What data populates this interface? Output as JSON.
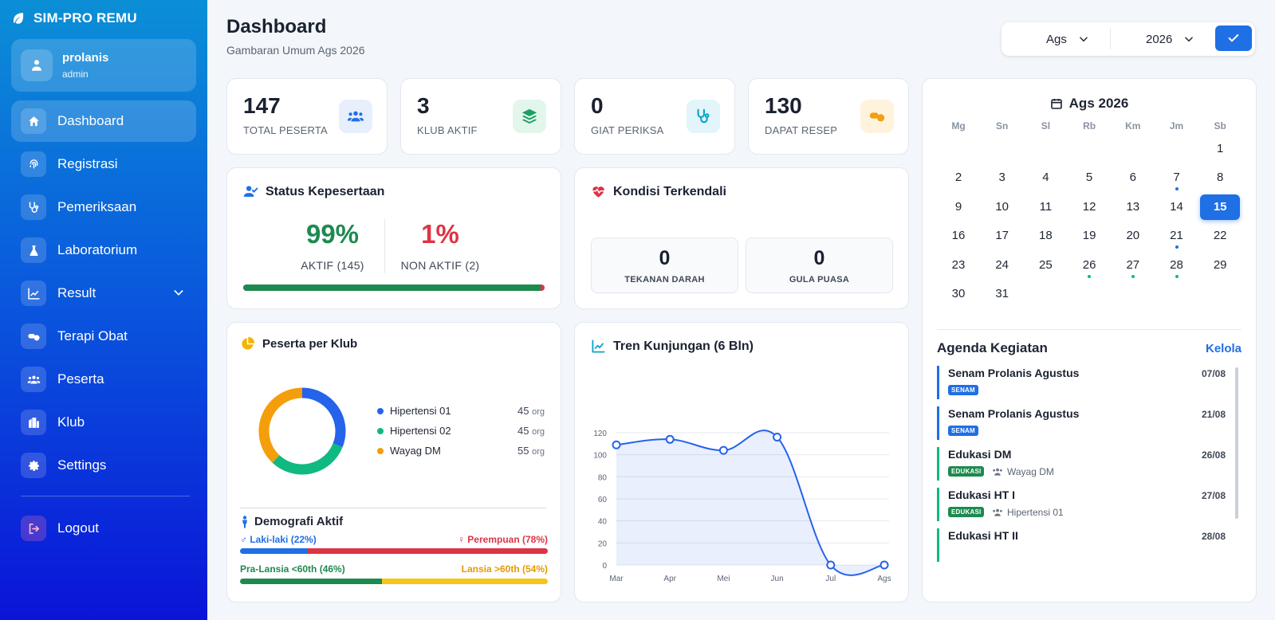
{
  "app": {
    "brand": "SIM-PRO REMU"
  },
  "user": {
    "name": "prolanis",
    "role": "admin"
  },
  "nav": {
    "items": [
      {
        "label": "Dashboard",
        "icon": "home-icon",
        "active": true
      },
      {
        "label": "Registrasi",
        "icon": "fingerprint-icon"
      },
      {
        "label": "Pemeriksaan",
        "icon": "stethoscope-icon"
      },
      {
        "label": "Laboratorium",
        "icon": "flask-icon"
      },
      {
        "label": "Result",
        "icon": "chart-line-icon",
        "has_submenu": true
      },
      {
        "label": "Terapi Obat",
        "icon": "pills-icon"
      },
      {
        "label": "Peserta",
        "icon": "users-icon"
      },
      {
        "label": "Klub",
        "icon": "building-icon"
      },
      {
        "label": "Settings",
        "icon": "gear-icon"
      }
    ],
    "logout": "Logout"
  },
  "header": {
    "title": "Dashboard",
    "subtitle": "Gambaran Umum Ags 2026",
    "month_value": "Ags",
    "year_value": "2026"
  },
  "stats": [
    {
      "value": "147",
      "label": "TOTAL PESERTA",
      "icon": "users-icon",
      "color": "#1f6fe5",
      "bg": "#e7effd"
    },
    {
      "value": "3",
      "label": "KLUB AKTIF",
      "icon": "layers-icon",
      "color": "#1d9f63",
      "bg": "#e2f6ec"
    },
    {
      "value": "0",
      "label": "GIAT PERIKSA",
      "icon": "stethoscope-icon",
      "color": "#0aa3c9",
      "bg": "#e1f5fb"
    },
    {
      "value": "130",
      "label": "DAPAT RESEP",
      "icon": "pills-icon",
      "color": "#f0a010",
      "bg": "#fff3de"
    }
  ],
  "status": {
    "title": "Status Kepesertaan",
    "active_pct": "99%",
    "active_label": "AKTIF (145)",
    "inactive_pct": "1%",
    "inactive_label": "NON AKTIF (2)",
    "active_fraction": 0.986
  },
  "kondisi": {
    "title": "Kondisi Terkendali",
    "items": [
      {
        "value": "0",
        "label": "TEKANAN DARAH"
      },
      {
        "value": "0",
        "label": "GULA PUASA"
      }
    ]
  },
  "peserta_klub": {
    "title": "Peserta per Klub",
    "items": [
      {
        "name": "Hipertensi 01",
        "value": 45,
        "color": "#2563eb"
      },
      {
        "name": "Hipertensi 02",
        "value": 45,
        "color": "#10b981"
      },
      {
        "name": "Wayag DM",
        "value": 55,
        "color": "#f59e0b"
      }
    ],
    "unit": "org"
  },
  "demografi": {
    "title": "Demografi Aktif",
    "male_label": "Laki-laki (22%)",
    "female_label": "Perempuan (78%)",
    "male_fraction": 0.22,
    "pre_label": "Pra-Lansia <60th (46%)",
    "lansia_label": "Lansia >60th (54%)",
    "pre_fraction": 0.46
  },
  "chart_data": {
    "type": "line",
    "title": "Tren Kunjungan (6 Bln)",
    "categories": [
      "Mar",
      "Apr",
      "Mei",
      "Jun",
      "Jul",
      "Ags"
    ],
    "values": [
      109,
      114,
      104,
      116,
      0,
      0
    ],
    "ylim": [
      0,
      120
    ],
    "yticks": [
      0,
      20,
      40,
      60,
      80,
      100,
      120
    ],
    "grid": true,
    "color": "#2563eb"
  },
  "calendar": {
    "title": "Ags 2026",
    "weekdays": [
      "Mg",
      "Sn",
      "Sl",
      "Rb",
      "Km",
      "Jm",
      "Sb"
    ],
    "start_weekday": 6,
    "days_in_month": 31,
    "today": 15,
    "blue_dots": [
      7,
      21
    ],
    "green_dots": [
      26,
      27,
      28
    ]
  },
  "agenda": {
    "title": "Agenda Kegiatan",
    "manage_label": "Kelola",
    "items": [
      {
        "name": "Senam Prolanis Agustus",
        "date": "07/08",
        "tag": "SENAM",
        "tag_color": "#1f6fe5",
        "sub": ""
      },
      {
        "name": "Senam Prolanis Agustus",
        "date": "21/08",
        "tag": "SENAM",
        "tag_color": "#1f6fe5",
        "sub": ""
      },
      {
        "name": "Edukasi DM",
        "date": "26/08",
        "tag": "EDUKASI",
        "tag_color": "#1d8a4f",
        "sub": "Wayag DM"
      },
      {
        "name": "Edukasi HT I",
        "date": "27/08",
        "tag": "EDUKASI",
        "tag_color": "#1d8a4f",
        "sub": "Hipertensi 01"
      },
      {
        "name": "Edukasi HT II",
        "date": "28/08",
        "tag": "",
        "tag_color": "#1d8a4f",
        "sub": ""
      }
    ]
  }
}
